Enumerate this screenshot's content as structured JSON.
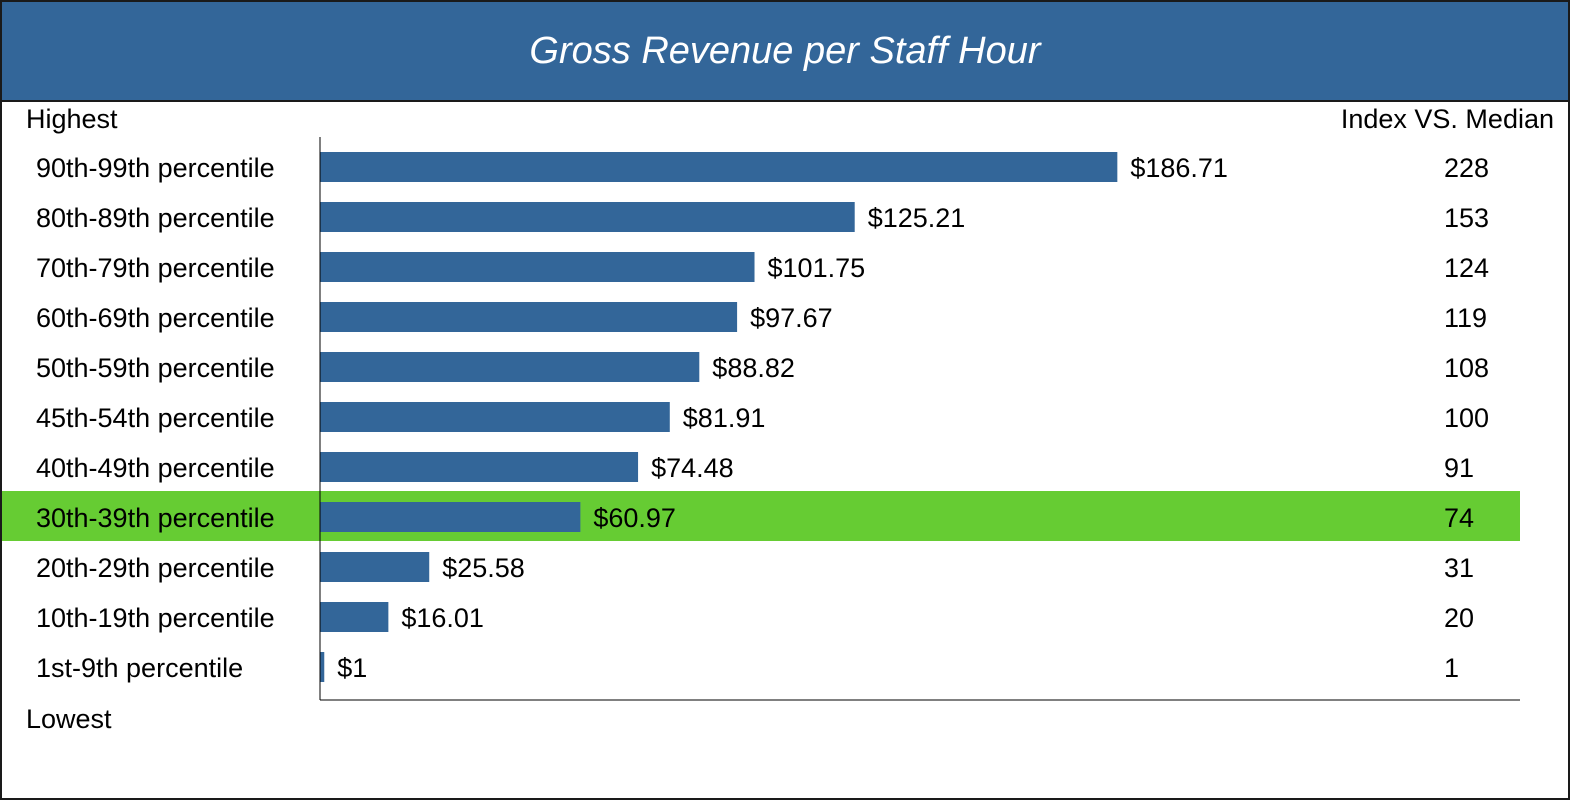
{
  "title": "Gross Revenue per Staff Hour",
  "top_label": "Highest",
  "bottom_label": "Lowest",
  "index_header": "Index VS. Median",
  "colors": {
    "header_bg": "#336699",
    "bar": "#336699",
    "highlight": "#66CC33"
  },
  "chart_data": {
    "type": "bar",
    "orientation": "horizontal",
    "title": "Gross Revenue per Staff Hour",
    "categories": [
      "90th-99th percentile",
      "80th-89th percentile",
      "70th-79th percentile",
      "60th-69th percentile",
      "50th-59th percentile",
      "45th-54th percentile",
      "40th-49th percentile",
      "30th-39th percentile",
      "20th-29th percentile",
      "10th-19th percentile",
      "1st-9th percentile"
    ],
    "values": [
      186.71,
      125.21,
      101.75,
      97.67,
      88.82,
      81.91,
      74.48,
      60.97,
      25.58,
      16.01,
      1
    ],
    "value_labels": [
      "$186.71",
      "$125.21",
      "$101.75",
      "$97.67",
      "$88.82",
      "$81.91",
      "$74.48",
      "$60.97",
      "$25.58",
      "$16.01",
      "$1"
    ],
    "index_values": [
      228,
      153,
      124,
      119,
      108,
      100,
      91,
      74,
      31,
      20,
      1
    ],
    "highlighted_category": "30th-39th percentile",
    "xlim": [
      0,
      281
    ],
    "grid": false,
    "legend": "none"
  }
}
